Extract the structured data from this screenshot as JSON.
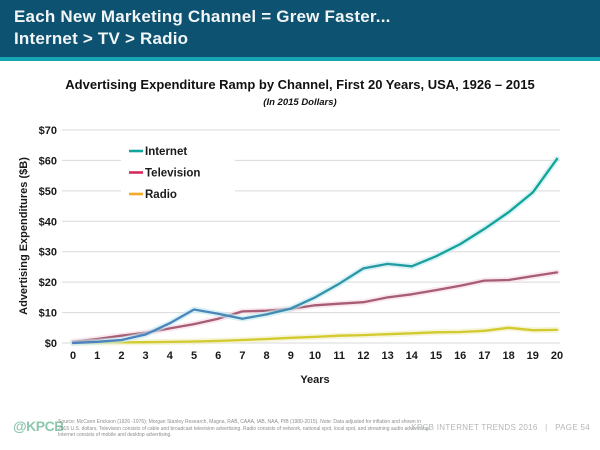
{
  "header": {
    "line1": "Each New Marketing Channel = Grew Faster...",
    "line2": "Internet > TV > Radio"
  },
  "chart_data": {
    "type": "line",
    "title": "Advertising Expenditure Ramp by Channel, First 20 Years, USA, 1926 – 2015",
    "subtitle": "(In 2015 Dollars)",
    "xlabel": "Years",
    "ylabel": "Advertising Expenditures ($B)",
    "x": [
      0,
      1,
      2,
      3,
      4,
      5,
      6,
      7,
      8,
      9,
      10,
      11,
      12,
      13,
      14,
      15,
      16,
      17,
      18,
      19,
      20
    ],
    "xlim": [
      0,
      20
    ],
    "ylim": [
      0,
      70
    ],
    "ytick_step": 10,
    "yticks": [
      0,
      10,
      20,
      30,
      40,
      50,
      60,
      70
    ],
    "ytick_labels": [
      "$0",
      "$10",
      "$20",
      "$30",
      "$40",
      "$50",
      "$60",
      "$70"
    ],
    "grid": true,
    "legend_position": "top-left-inside",
    "series": [
      {
        "name": "Internet",
        "legend_color": "#12a79a",
        "line_color_start": "#4d80c3",
        "line_color_end": "#10a596",
        "glow_color": "#bfe9ee",
        "values": [
          0,
          0.4,
          1.0,
          2.8,
          6.5,
          11.0,
          9.6,
          8.0,
          9.4,
          11.3,
          15.0,
          19.5,
          24.5,
          26.0,
          25.2,
          28.5,
          32.5,
          37.5,
          43.0,
          49.5,
          60.5
        ]
      },
      {
        "name": "Television",
        "legend_color": "#d62a5e",
        "line_color": "#a75d72",
        "glow_color": "#f7d9e7",
        "values": [
          0.4,
          1.3,
          2.4,
          3.4,
          4.8,
          6.2,
          8.0,
          10.4,
          10.6,
          11.2,
          12.4,
          12.9,
          13.4,
          15.0,
          16.0,
          17.4,
          18.8,
          20.5,
          20.7,
          22.0,
          23.2
        ]
      },
      {
        "name": "Radio",
        "legend_color": "#f7a928",
        "line_color": "#d2ca2f",
        "glow_color": "#f0efc0",
        "values": [
          0.1,
          0.15,
          0.2,
          0.25,
          0.35,
          0.5,
          0.7,
          1.0,
          1.3,
          1.7,
          2.0,
          2.4,
          2.6,
          2.9,
          3.2,
          3.5,
          3.6,
          4.0,
          5.0,
          4.2,
          4.3
        ]
      }
    ]
  },
  "footer": {
    "logo": "@KPCB",
    "source_text": "Source: McCann Erickson (1926 -1976); Morgan Stanley Research, Magna, RAB, CAAA, IAB, NAA, PIB (1980-2015).",
    "note_text": "Note: Data adjusted for inflation and shown in 2015 U.S. dollars. Television consists of cable and broadcast television advertising. Radio consists of network, national spot, local spot, and streaming audio advertising. Internet consists of mobile and desktop advertising.",
    "right_text": "KPCB INTERNET TRENDS 2016   |   PAGE 54"
  },
  "colors": {
    "header_bg": "#0d5271",
    "header_accent": "#14a4b4",
    "header_text": "#f2f6f7",
    "gridline": "#d9d9d9",
    "axis_text": "#1a1a1a",
    "footer_logo": "#8cc7ae",
    "footer_text": "#b3b7b6",
    "footer_source": "#8a8f8e"
  }
}
